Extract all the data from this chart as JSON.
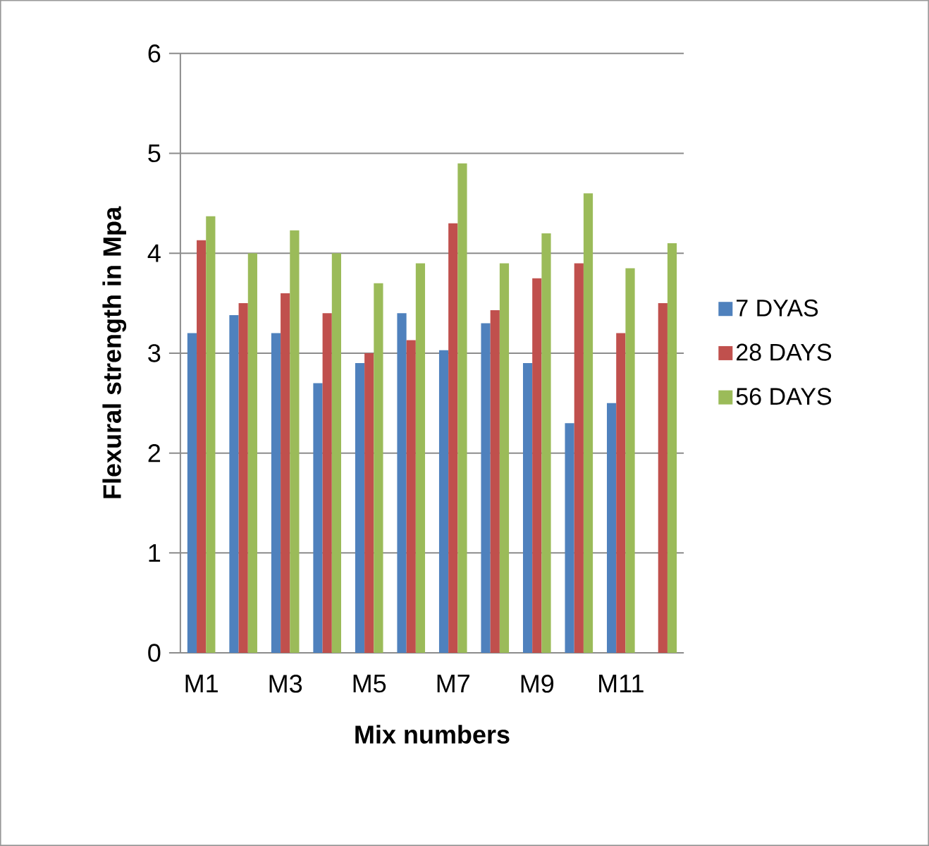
{
  "chart_data": {
    "type": "bar",
    "xlabel": "Mix numbers",
    "ylabel": "Flexural strength in Mpa",
    "categories": [
      "M1",
      null,
      "M3",
      null,
      "M5",
      null,
      "M7",
      null,
      "M9",
      null,
      "M11",
      null
    ],
    "series": [
      {
        "name": "7 DYAS",
        "color": "#4f81bd",
        "values": [
          3.2,
          3.38,
          3.2,
          2.7,
          2.9,
          3.4,
          3.03,
          3.3,
          2.9,
          2.3,
          2.5,
          null
        ]
      },
      {
        "name": "28 DAYS",
        "color": "#c0504d",
        "values": [
          4.13,
          3.5,
          3.6,
          3.4,
          3.0,
          3.13,
          4.3,
          3.43,
          3.75,
          3.9,
          3.2,
          3.5
        ]
      },
      {
        "name": "56 DAYS",
        "color": "#9bbb59",
        "values": [
          4.37,
          4.0,
          4.23,
          4.0,
          3.7,
          3.9,
          4.9,
          3.9,
          4.2,
          4.6,
          3.85,
          4.1
        ]
      }
    ],
    "ylim": [
      0,
      6
    ],
    "yticks": [
      0,
      1,
      2,
      3,
      4,
      5,
      6
    ],
    "grid": "y",
    "legend": "right"
  }
}
